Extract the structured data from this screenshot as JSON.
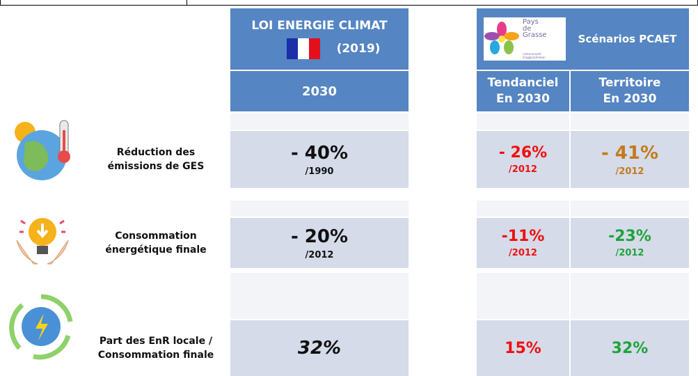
{
  "header": {
    "law": {
      "title": "LOI ENERGIE CLIMAT",
      "year": "(2019)",
      "column": "2030"
    },
    "pcaet": {
      "logo": {
        "name": "Pays\nde\nGrasse",
        "subtitle": "communauté d'agglomération"
      },
      "title": "Scénarios PCAET",
      "columns": [
        "Tendanciel\nEn 2030",
        "Territoire\nEn 2030"
      ]
    }
  },
  "rows": [
    {
      "label": "Réduction des\némissions de GES",
      "law": {
        "value": "- 40%",
        "ref": "/1990"
      },
      "tendanciel": {
        "value": "- 26%",
        "ref": "/2012"
      },
      "territoire": {
        "value": "- 41%",
        "ref": "/2012"
      }
    },
    {
      "label": "Consommation\nénergétique finale",
      "law": {
        "value": "- 20%",
        "ref": "/2012"
      },
      "tendanciel": {
        "value": "-11%",
        "ref": "/2012"
      },
      "territoire": {
        "value": "-23%",
        "ref": "/2012"
      }
    },
    {
      "label": "Part des EnR locale /\nConsommation finale",
      "law": {
        "value": "32%"
      },
      "tendanciel": {
        "value": "15%"
      },
      "territoire": {
        "value": "32%"
      }
    }
  ]
}
